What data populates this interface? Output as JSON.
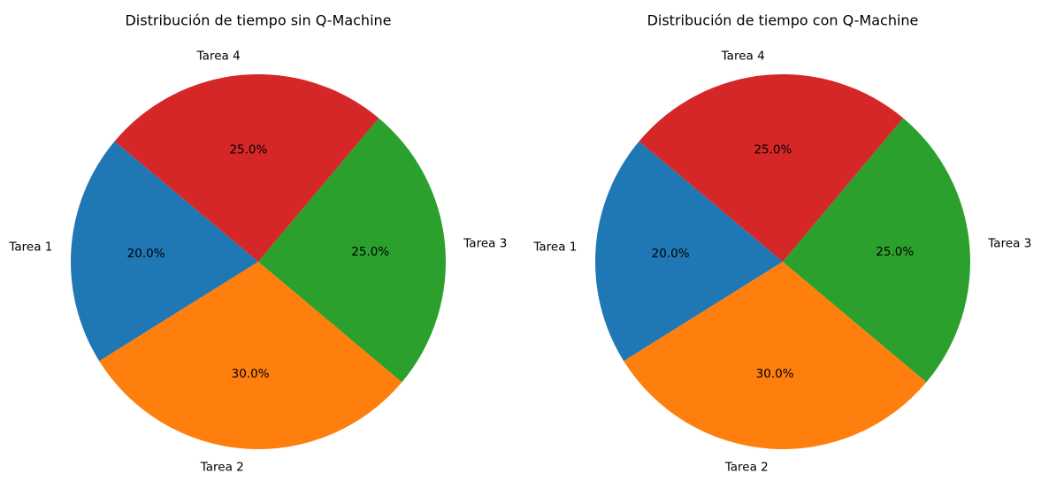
{
  "chart_data": [
    {
      "type": "pie",
      "title": "Distribución de tiempo sin Q-Machine",
      "categories": [
        "Tarea 1",
        "Tarea 2",
        "Tarea 3",
        "Tarea 4"
      ],
      "values": [
        20,
        30,
        25,
        25
      ],
      "percent_labels": [
        "20.0%",
        "30.0%",
        "25.0%",
        "25.0%"
      ],
      "colors": [
        "#1f77b4",
        "#ff7f0e",
        "#2ca02c",
        "#d62728"
      ],
      "start_angle_deg": 140,
      "direction": "counterclockwise"
    },
    {
      "type": "pie",
      "title": "Distribución de tiempo con Q-Machine",
      "categories": [
        "Tarea 1",
        "Tarea 2",
        "Tarea 3",
        "Tarea 4"
      ],
      "values": [
        20,
        30,
        25,
        25
      ],
      "percent_labels": [
        "20.0%",
        "30.0%",
        "25.0%",
        "25.0%"
      ],
      "colors": [
        "#1f77b4",
        "#ff7f0e",
        "#2ca02c",
        "#d62728"
      ],
      "start_angle_deg": 140,
      "direction": "counterclockwise"
    }
  ]
}
